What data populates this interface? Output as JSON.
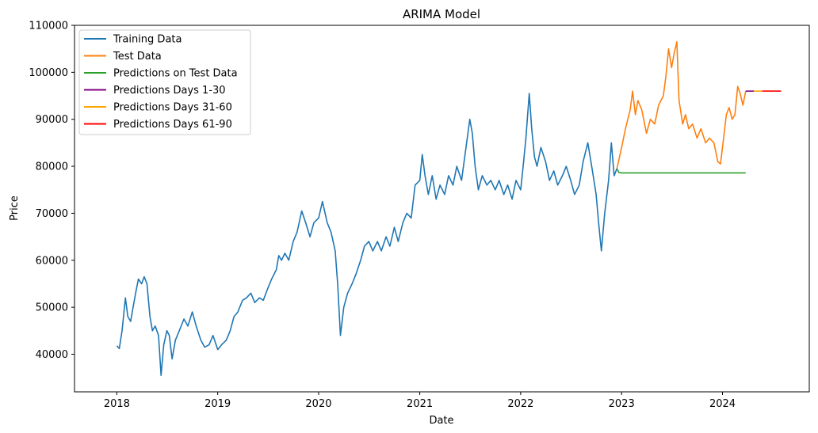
{
  "chart_data": {
    "type": "line",
    "title": "ARIMA Model",
    "xlabel": "Date",
    "ylabel": "Price",
    "xlim": [
      "2017-08-01",
      "2024-11-10"
    ],
    "ylim": [
      32000,
      110000
    ],
    "x_ticks": [
      "2018",
      "2019",
      "2020",
      "2021",
      "2022",
      "2023",
      "2024"
    ],
    "y_ticks": [
      40000,
      50000,
      60000,
      70000,
      80000,
      90000,
      100000,
      110000
    ],
    "grid": false,
    "legend_position": "top-left",
    "series": [
      {
        "name": "Training Data",
        "color": "#1f77b4",
        "points": [
          [
            "2018-01-01",
            41800
          ],
          [
            "2018-01-10",
            41200
          ],
          [
            "2018-01-20",
            45000
          ],
          [
            "2018-02-01",
            52000
          ],
          [
            "2018-02-10",
            48000
          ],
          [
            "2018-02-20",
            47000
          ],
          [
            "2018-03-01",
            50000
          ],
          [
            "2018-03-10",
            53000
          ],
          [
            "2018-03-20",
            56000
          ],
          [
            "2018-04-01",
            55000
          ],
          [
            "2018-04-10",
            56500
          ],
          [
            "2018-04-20",
            55000
          ],
          [
            "2018-05-01",
            48000
          ],
          [
            "2018-05-10",
            45000
          ],
          [
            "2018-05-20",
            46000
          ],
          [
            "2018-06-01",
            44000
          ],
          [
            "2018-06-10",
            35500
          ],
          [
            "2018-06-20",
            42000
          ],
          [
            "2018-07-01",
            45000
          ],
          [
            "2018-07-10",
            44000
          ],
          [
            "2018-07-20",
            39000
          ],
          [
            "2018-08-01",
            43000
          ],
          [
            "2018-08-15",
            45000
          ],
          [
            "2018-09-01",
            47500
          ],
          [
            "2018-09-15",
            46000
          ],
          [
            "2018-10-01",
            49000
          ],
          [
            "2018-10-15",
            46000
          ],
          [
            "2018-11-01",
            43000
          ],
          [
            "2018-11-15",
            41500
          ],
          [
            "2018-12-01",
            42000
          ],
          [
            "2018-12-15",
            44000
          ],
          [
            "2019-01-01",
            41000
          ],
          [
            "2019-01-15",
            42000
          ],
          [
            "2019-02-01",
            43000
          ],
          [
            "2019-02-15",
            45000
          ],
          [
            "2019-03-01",
            48000
          ],
          [
            "2019-03-15",
            49000
          ],
          [
            "2019-04-01",
            51500
          ],
          [
            "2019-04-15",
            52000
          ],
          [
            "2019-05-01",
            53000
          ],
          [
            "2019-05-15",
            51000
          ],
          [
            "2019-06-01",
            52000
          ],
          [
            "2019-06-15",
            51500
          ],
          [
            "2019-07-01",
            54000
          ],
          [
            "2019-07-15",
            56000
          ],
          [
            "2019-08-01",
            58000
          ],
          [
            "2019-08-10",
            61000
          ],
          [
            "2019-08-20",
            60000
          ],
          [
            "2019-09-01",
            61500
          ],
          [
            "2019-09-15",
            60000
          ],
          [
            "2019-10-01",
            64000
          ],
          [
            "2019-10-15",
            66000
          ],
          [
            "2019-11-01",
            70500
          ],
          [
            "2019-11-15",
            68000
          ],
          [
            "2019-12-01",
            65000
          ],
          [
            "2019-12-15",
            68000
          ],
          [
            "2020-01-01",
            69000
          ],
          [
            "2020-01-15",
            72500
          ],
          [
            "2020-02-01",
            68000
          ],
          [
            "2020-02-15",
            66000
          ],
          [
            "2020-03-01",
            62000
          ],
          [
            "2020-03-10",
            55000
          ],
          [
            "2020-03-20",
            44000
          ],
          [
            "2020-04-01",
            50000
          ],
          [
            "2020-04-15",
            53000
          ],
          [
            "2020-05-01",
            55000
          ],
          [
            "2020-05-15",
            57000
          ],
          [
            "2020-06-01",
            60000
          ],
          [
            "2020-06-15",
            63000
          ],
          [
            "2020-07-01",
            64000
          ],
          [
            "2020-07-15",
            62000
          ],
          [
            "2020-08-01",
            64000
          ],
          [
            "2020-08-15",
            62000
          ],
          [
            "2020-09-01",
            65000
          ],
          [
            "2020-09-15",
            63000
          ],
          [
            "2020-10-01",
            67000
          ],
          [
            "2020-10-15",
            64000
          ],
          [
            "2020-11-01",
            68000
          ],
          [
            "2020-11-15",
            70000
          ],
          [
            "2020-12-01",
            69000
          ],
          [
            "2020-12-15",
            76000
          ],
          [
            "2021-01-01",
            77000
          ],
          [
            "2021-01-10",
            82500
          ],
          [
            "2021-01-20",
            78000
          ],
          [
            "2021-02-01",
            74000
          ],
          [
            "2021-02-15",
            78000
          ],
          [
            "2021-03-01",
            73000
          ],
          [
            "2021-03-15",
            76000
          ],
          [
            "2021-04-01",
            74000
          ],
          [
            "2021-04-15",
            78000
          ],
          [
            "2021-05-01",
            76000
          ],
          [
            "2021-05-15",
            80000
          ],
          [
            "2021-06-01",
            77000
          ],
          [
            "2021-06-15",
            83000
          ],
          [
            "2021-07-01",
            90000
          ],
          [
            "2021-07-10",
            87000
          ],
          [
            "2021-07-20",
            80000
          ],
          [
            "2021-08-01",
            75000
          ],
          [
            "2021-08-15",
            78000
          ],
          [
            "2021-09-01",
            76000
          ],
          [
            "2021-09-15",
            77000
          ],
          [
            "2021-10-01",
            75000
          ],
          [
            "2021-10-15",
            77000
          ],
          [
            "2021-11-01",
            74000
          ],
          [
            "2021-11-15",
            76000
          ],
          [
            "2021-12-01",
            73000
          ],
          [
            "2021-12-15",
            77000
          ],
          [
            "2022-01-01",
            75000
          ],
          [
            "2022-01-10",
            80000
          ],
          [
            "2022-01-20",
            86000
          ],
          [
            "2022-02-01",
            95500
          ],
          [
            "2022-02-10",
            88000
          ],
          [
            "2022-02-20",
            82000
          ],
          [
            "2022-03-01",
            80000
          ],
          [
            "2022-03-15",
            84000
          ],
          [
            "2022-04-01",
            81000
          ],
          [
            "2022-04-15",
            77000
          ],
          [
            "2022-05-01",
            79000
          ],
          [
            "2022-05-15",
            76000
          ],
          [
            "2022-06-01",
            78000
          ],
          [
            "2022-06-15",
            80000
          ],
          [
            "2022-07-01",
            77000
          ],
          [
            "2022-07-15",
            74000
          ],
          [
            "2022-08-01",
            76000
          ],
          [
            "2022-08-15",
            81000
          ],
          [
            "2022-09-01",
            85000
          ],
          [
            "2022-09-15",
            80000
          ],
          [
            "2022-10-01",
            74000
          ],
          [
            "2022-10-10",
            68000
          ],
          [
            "2022-10-20",
            62000
          ],
          [
            "2022-11-01",
            70000
          ],
          [
            "2022-11-15",
            77000
          ],
          [
            "2022-11-25",
            85000
          ],
          [
            "2022-12-05",
            78000
          ],
          [
            "2022-12-15",
            79500
          ]
        ]
      },
      {
        "name": "Test Data",
        "color": "#ff7f0e",
        "points": [
          [
            "2022-12-15",
            79500
          ],
          [
            "2023-01-01",
            84000
          ],
          [
            "2023-01-15",
            88000
          ],
          [
            "2023-02-01",
            92000
          ],
          [
            "2023-02-10",
            96000
          ],
          [
            "2023-02-20",
            91000
          ],
          [
            "2023-03-01",
            94000
          ],
          [
            "2023-03-15",
            92000
          ],
          [
            "2023-04-01",
            87000
          ],
          [
            "2023-04-15",
            90000
          ],
          [
            "2023-05-01",
            89000
          ],
          [
            "2023-05-15",
            93000
          ],
          [
            "2023-06-01",
            95000
          ],
          [
            "2023-06-10",
            99000
          ],
          [
            "2023-06-20",
            105000
          ],
          [
            "2023-07-01",
            101000
          ],
          [
            "2023-07-10",
            104000
          ],
          [
            "2023-07-20",
            106500
          ],
          [
            "2023-07-28",
            94000
          ],
          [
            "2023-08-10",
            89000
          ],
          [
            "2023-08-20",
            91000
          ],
          [
            "2023-09-01",
            88000
          ],
          [
            "2023-09-15",
            89000
          ],
          [
            "2023-10-01",
            86000
          ],
          [
            "2023-10-15",
            88000
          ],
          [
            "2023-11-01",
            85000
          ],
          [
            "2023-11-15",
            86000
          ],
          [
            "2023-12-01",
            85000
          ],
          [
            "2023-12-15",
            81000
          ],
          [
            "2023-12-25",
            80500
          ],
          [
            "2024-01-05",
            86000
          ],
          [
            "2024-01-15",
            91000
          ],
          [
            "2024-01-25",
            92500
          ],
          [
            "2024-02-05",
            90000
          ],
          [
            "2024-02-15",
            91000
          ],
          [
            "2024-02-25",
            97000
          ],
          [
            "2024-03-05",
            95500
          ],
          [
            "2024-03-15",
            93000
          ],
          [
            "2024-03-25",
            96000
          ]
        ]
      },
      {
        "name": "Predictions on Test Data",
        "color": "#2ca02c",
        "points": [
          [
            "2022-12-15",
            79500
          ],
          [
            "2022-12-22",
            78700
          ],
          [
            "2023-01-01",
            78600
          ],
          [
            "2024-03-25",
            78600
          ]
        ]
      },
      {
        "name": "Predictions Days 1-30",
        "color": "#800080",
        "points": [
          [
            "2024-03-25",
            96000
          ],
          [
            "2024-04-24",
            96000
          ]
        ]
      },
      {
        "name": "Predictions Days 31-60",
        "color": "#ffa500",
        "points": [
          [
            "2024-04-24",
            96000
          ],
          [
            "2024-05-24",
            96000
          ]
        ]
      },
      {
        "name": "Predictions Days 61-90",
        "color": "#ff0000",
        "points": [
          [
            "2024-05-24",
            96000
          ],
          [
            "2024-07-31",
            96000
          ]
        ]
      }
    ]
  }
}
